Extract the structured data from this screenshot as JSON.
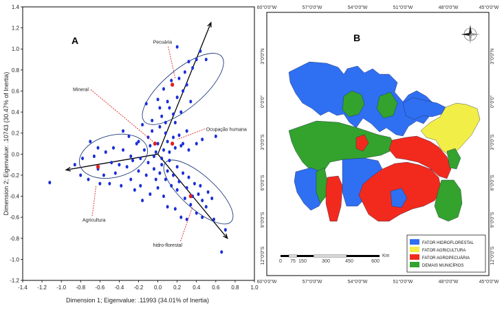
{
  "panel_a": {
    "letter": "A",
    "chart_data": {
      "type": "scatter",
      "xlabel": "Dimension 1; Eigenvalue: .11993 (34.01% of Inertia)",
      "ylabel": "Dimension 2; Eigenvalue: .10743 (30.47% of Inertia)",
      "xlim": [
        -1.4,
        1.0
      ],
      "ylim": [
        -1.2,
        1.4
      ],
      "xticks": [
        "-1.4",
        "-1.2",
        "-1.0",
        "-0.8",
        "-0.6",
        "-0.4",
        "-0.2",
        "0.0",
        "0.2",
        "0.4",
        "0.6",
        "0.8",
        "1.0"
      ],
      "yticks": [
        "1.4",
        "1.2",
        "1.0",
        "0.8",
        "0.6",
        "0.4",
        "0.2",
        "0.0",
        "-0.2",
        "-0.4",
        "-0.6",
        "-0.8",
        "-1.0",
        "-1.2"
      ],
      "point_color": "#1a2fd6",
      "category_color": "#e02020",
      "points": [
        [
          0.2,
          1.02
        ],
        [
          0.28,
          0.78
        ],
        [
          0.36,
          0.82
        ],
        [
          0.44,
          0.98
        ],
        [
          0.5,
          0.9
        ],
        [
          0.3,
          0.66
        ],
        [
          0.14,
          0.7
        ],
        [
          0.06,
          0.62
        ],
        [
          0.1,
          0.5
        ],
        [
          0.24,
          0.4
        ],
        [
          0.34,
          0.5
        ],
        [
          0.2,
          0.54
        ],
        [
          0.16,
          0.38
        ],
        [
          0.04,
          0.36
        ],
        [
          -0.12,
          0.48
        ],
        [
          0.0,
          0.52
        ],
        [
          0.08,
          0.2
        ],
        [
          0.18,
          0.3
        ],
        [
          0.3,
          0.22
        ],
        [
          0.46,
          0.14
        ],
        [
          0.6,
          0.17
        ],
        [
          0.02,
          0.26
        ],
        [
          -0.06,
          0.22
        ],
        [
          -0.16,
          0.28
        ],
        [
          -0.22,
          0.1
        ],
        [
          -0.3,
          0.17
        ],
        [
          -0.36,
          0.22
        ],
        [
          -0.46,
          0.06
        ],
        [
          -0.54,
          0.02
        ],
        [
          -0.62,
          0.06
        ],
        [
          -0.7,
          0.12
        ],
        [
          -0.78,
          -0.04
        ],
        [
          -0.86,
          -0.1
        ],
        [
          -0.8,
          -0.2
        ],
        [
          -0.72,
          -0.24
        ],
        [
          -0.62,
          -0.14
        ],
        [
          -0.56,
          -0.2
        ],
        [
          -0.48,
          -0.08
        ],
        [
          -0.4,
          -0.1
        ],
        [
          -0.32,
          -0.12
        ],
        [
          -0.26,
          -0.06
        ],
        [
          -0.18,
          -0.04
        ],
        [
          -0.1,
          -0.08
        ],
        [
          -0.04,
          -0.02
        ],
        [
          0.04,
          -0.04
        ],
        [
          0.12,
          -0.06
        ],
        [
          0.2,
          -0.12
        ],
        [
          0.26,
          -0.18
        ],
        [
          0.32,
          -0.22
        ],
        [
          0.38,
          -0.28
        ],
        [
          0.42,
          -0.38
        ],
        [
          0.46,
          -0.44
        ],
        [
          0.5,
          -0.5
        ],
        [
          0.4,
          -0.56
        ],
        [
          0.34,
          -0.48
        ],
        [
          0.28,
          -0.42
        ],
        [
          0.2,
          -0.34
        ],
        [
          0.14,
          -0.3
        ],
        [
          0.08,
          -0.24
        ],
        [
          0.02,
          -0.18
        ],
        [
          -0.04,
          -0.14
        ],
        [
          -0.12,
          -0.2
        ],
        [
          -0.18,
          -0.3
        ],
        [
          -0.24,
          -0.34
        ],
        [
          -0.16,
          -0.44
        ],
        [
          -0.08,
          -0.38
        ],
        [
          0.0,
          -0.32
        ],
        [
          0.06,
          -0.4
        ],
        [
          0.1,
          -0.5
        ],
        [
          0.18,
          -0.52
        ],
        [
          0.24,
          -0.6
        ],
        [
          0.3,
          -0.62
        ],
        [
          0.46,
          -0.6
        ],
        [
          0.58,
          -0.62
        ],
        [
          0.7,
          -0.72
        ],
        [
          0.66,
          -0.93
        ],
        [
          -1.12,
          -0.27
        ],
        [
          -0.2,
          0.12
        ],
        [
          -0.14,
          0.04
        ],
        [
          -0.08,
          0.08
        ],
        [
          0.0,
          0.1
        ],
        [
          0.06,
          0.04
        ],
        [
          0.12,
          0.02
        ],
        [
          0.18,
          0.06
        ],
        [
          0.24,
          0.08
        ],
        [
          0.32,
          0.04
        ],
        [
          0.4,
          0.1
        ],
        [
          -0.36,
          0.04
        ],
        [
          -0.28,
          -0.02
        ],
        [
          -0.2,
          -0.16
        ],
        [
          -0.28,
          -0.24
        ],
        [
          -0.38,
          -0.3
        ],
        [
          -0.5,
          -0.28
        ],
        [
          -0.44,
          -0.18
        ],
        [
          -0.66,
          -0.02
        ],
        [
          -0.6,
          -0.28
        ],
        [
          -0.02,
          0.02
        ],
        [
          0.1,
          0.12
        ],
        [
          0.16,
          0.16
        ],
        [
          0.22,
          0.18
        ],
        [
          0.26,
          0.1
        ],
        [
          -0.1,
          0.16
        ],
        [
          -0.06,
          0.32
        ],
        [
          0.02,
          0.44
        ],
        [
          0.08,
          0.3
        ],
        [
          0.12,
          0.44
        ],
        [
          0.26,
          0.6
        ],
        [
          0.22,
          0.72
        ],
        [
          0.32,
          0.88
        ],
        [
          0.4,
          0.9
        ],
        [
          -0.02,
          -0.24
        ],
        [
          0.04,
          -0.1
        ],
        [
          0.1,
          -0.16
        ],
        [
          0.16,
          -0.2
        ],
        [
          0.22,
          -0.26
        ],
        [
          0.3,
          -0.32
        ],
        [
          0.36,
          -0.4
        ],
        [
          0.44,
          -0.3
        ],
        [
          0.52,
          -0.36
        ],
        [
          0.56,
          -0.42
        ]
      ],
      "categories": [
        {
          "name": "Pecuária",
          "x": 0.15,
          "y": 0.66
        },
        {
          "name": "Mineral",
          "x": -0.03,
          "y": 0.1
        },
        {
          "name": "Ocupação humana",
          "x": 0.15,
          "y": 0.1
        },
        {
          "name": "Agricultura",
          "x": -0.62,
          "y": -0.12
        },
        {
          "name": "hidro-florestal",
          "x": 0.34,
          "y": -0.4
        }
      ]
    }
  },
  "panel_b": {
    "letter": "B",
    "top_coords": [
      "60°0'0\"W",
      "57°0'0\"W",
      "54°0'0\"W",
      "51°0'0\"W",
      "48°0'0\"W",
      "45°0'0\"W"
    ],
    "bottom_coords": [
      "60°0'0\"W",
      "57°0'0\"W",
      "54°0'0\"W",
      "51°0'0\"W",
      "48°0'0\"W",
      "45°0'0\"W"
    ],
    "side_coords": [
      "3°0'0\"N",
      "0°0'0\"",
      "3°0'0\"S",
      "6°0'0\"S",
      "9°0'0\"S",
      "12°0'0\"S"
    ],
    "scale_unit": "Km",
    "scale_ticks": [
      "0",
      "75",
      "150",
      "300",
      "450",
      "600"
    ],
    "legend": [
      {
        "label": "FATOR HIDROFLORESTAL",
        "color": "#2f6ff2"
      },
      {
        "label": "FATOR AGRICULTURA",
        "color": "#f2ee48"
      },
      {
        "label": "FATOR AGROPECUÁRIA",
        "color": "#f22a1e"
      },
      {
        "label": "DEMAIS MUNICÍPIOS",
        "color": "#33a32d"
      }
    ]
  }
}
